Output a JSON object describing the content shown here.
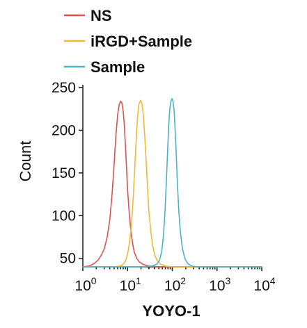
{
  "chart_data": {
    "type": "line",
    "xlabel": "YOYO-1",
    "ylabel": "Count",
    "x_scale": "log",
    "xlim": [
      1,
      10000
    ],
    "ylim": [
      40,
      250
    ],
    "x_ticks": [
      1,
      10,
      100,
      1000,
      10000
    ],
    "x_tick_labels": [
      {
        "base": "10",
        "exp": "0"
      },
      {
        "base": "10",
        "exp": "1"
      },
      {
        "base": "10",
        "exp": "2"
      },
      {
        "base": "10",
        "exp": "3"
      },
      {
        "base": "10",
        "exp": "4"
      }
    ],
    "y_ticks": [
      50,
      100,
      150,
      200,
      250
    ],
    "y_tick_labels": [
      "50",
      "100",
      "150",
      "200",
      "250"
    ],
    "grid": false,
    "legend_position": "top-left",
    "series": [
      {
        "name": "NS",
        "color": "#d9534f",
        "points": [
          [
            1,
            40
          ],
          [
            1.4,
            41
          ],
          [
            1.8,
            44
          ],
          [
            2.2,
            48
          ],
          [
            2.6,
            54
          ],
          [
            3.0,
            61
          ],
          [
            3.5,
            75
          ],
          [
            4.0,
            95
          ],
          [
            4.5,
            125
          ],
          [
            5.0,
            160
          ],
          [
            5.5,
            195
          ],
          [
            6.0,
            218
          ],
          [
            6.5,
            230
          ],
          [
            7.0,
            234
          ],
          [
            7.5,
            232
          ],
          [
            8.0,
            222
          ],
          [
            8.5,
            205
          ],
          [
            9.0,
            180
          ],
          [
            9.5,
            155
          ],
          [
            10,
            130
          ],
          [
            11,
            100
          ],
          [
            12,
            80
          ],
          [
            13,
            67
          ],
          [
            14,
            58
          ],
          [
            16,
            50
          ],
          [
            18,
            46
          ],
          [
            22,
            43
          ],
          [
            30,
            41
          ],
          [
            50,
            40
          ],
          [
            10000,
            40
          ]
        ]
      },
      {
        "name": "iRGD+Sample",
        "color": "#f0b93a",
        "points": [
          [
            1,
            40
          ],
          [
            5,
            40
          ],
          [
            7,
            41
          ],
          [
            8,
            43
          ],
          [
            9,
            47
          ],
          [
            10,
            55
          ],
          [
            11,
            68
          ],
          [
            12,
            85
          ],
          [
            13,
            110
          ],
          [
            14,
            140
          ],
          [
            15,
            172
          ],
          [
            16,
            200
          ],
          [
            17,
            220
          ],
          [
            18,
            231
          ],
          [
            19.5,
            235
          ],
          [
            21,
            231
          ],
          [
            22.5,
            218
          ],
          [
            24,
            196
          ],
          [
            26,
            165
          ],
          [
            28,
            132
          ],
          [
            30,
            105
          ],
          [
            33,
            82
          ],
          [
            36,
            66
          ],
          [
            40,
            55
          ],
          [
            45,
            48
          ],
          [
            55,
            43
          ],
          [
            70,
            41
          ],
          [
            100,
            40
          ],
          [
            10000,
            40
          ]
        ]
      },
      {
        "name": "Sample",
        "color": "#4bb3c8",
        "points": [
          [
            1,
            40
          ],
          [
            20,
            40
          ],
          [
            35,
            41
          ],
          [
            45,
            43
          ],
          [
            52,
            48
          ],
          [
            58,
            58
          ],
          [
            63,
            75
          ],
          [
            68,
            100
          ],
          [
            73,
            135
          ],
          [
            78,
            172
          ],
          [
            83,
            205
          ],
          [
            88,
            225
          ],
          [
            93,
            234
          ],
          [
            98,
            237
          ],
          [
            104,
            234
          ],
          [
            110,
            222
          ],
          [
            116,
            200
          ],
          [
            123,
            170
          ],
          [
            130,
            138
          ],
          [
            140,
            105
          ],
          [
            152,
            80
          ],
          [
            168,
            62
          ],
          [
            190,
            50
          ],
          [
            220,
            44
          ],
          [
            270,
            41
          ],
          [
            350,
            40
          ],
          [
            10000,
            40
          ]
        ]
      }
    ]
  }
}
